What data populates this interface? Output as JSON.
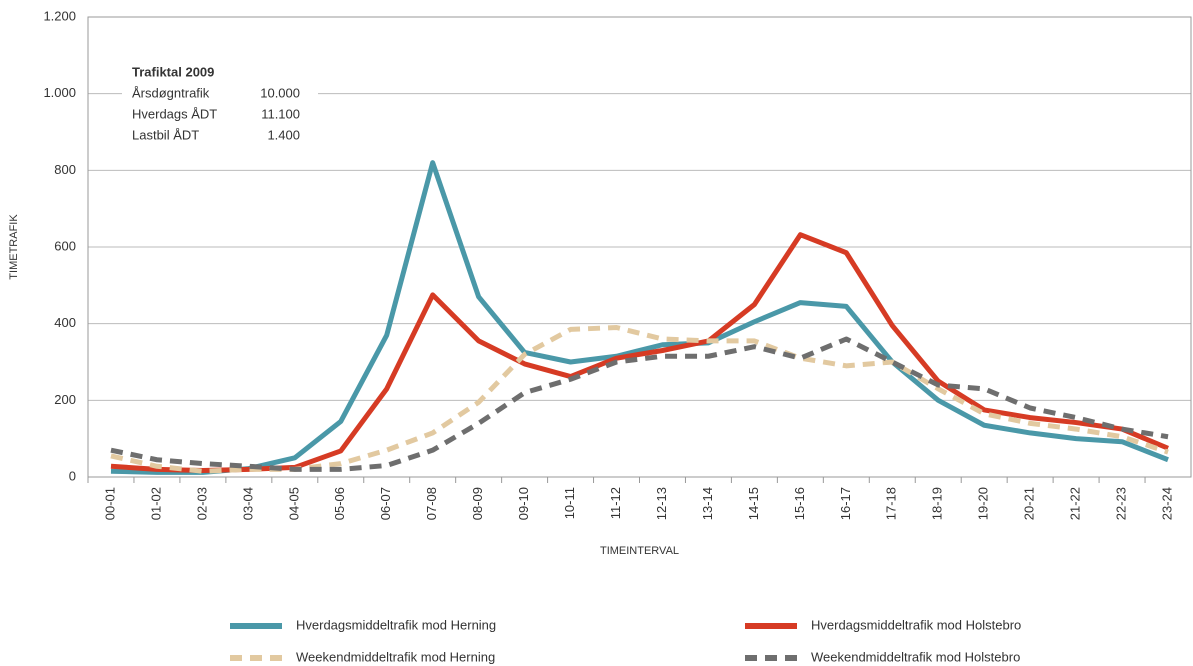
{
  "chart_data": {
    "type": "line",
    "x_label": "TIMEINTERVAL",
    "y_label": "TIMETRAFIK",
    "categories": [
      "00-01",
      "01-02",
      "02-03",
      "03-04",
      "04-05",
      "05-06",
      "06-07",
      "07-08",
      "08-09",
      "09-10",
      "10-11",
      "11-12",
      "12-13",
      "13-14",
      "14-15",
      "15-16",
      "16-17",
      "17-18",
      "18-19",
      "19-20",
      "20-21",
      "21-22",
      "22-23",
      "23-24"
    ],
    "series": [
      {
        "name": "Hverdagsmiddeltrafik mod Herning",
        "color": "#4a98a8",
        "dashed": false,
        "values": [
          15,
          12,
          12,
          22,
          50,
          145,
          370,
          820,
          470,
          325,
          300,
          315,
          345,
          350,
          405,
          455,
          445,
          300,
          200,
          135,
          115,
          100,
          92,
          45
        ]
      },
      {
        "name": "Hverdagsmiddeltrafik mod Holstebro",
        "color": "#d63b24",
        "dashed": false,
        "values": [
          28,
          20,
          17,
          20,
          25,
          68,
          230,
          475,
          355,
          295,
          262,
          310,
          330,
          355,
          450,
          632,
          585,
          395,
          250,
          175,
          155,
          142,
          125,
          75
        ]
      },
      {
        "name": "Weekendmiddeltrafik mod Herning",
        "color": "#e2c9a0",
        "dashed": true,
        "values": [
          55,
          28,
          15,
          20,
          20,
          35,
          70,
          115,
          195,
          320,
          385,
          390,
          360,
          355,
          355,
          310,
          290,
          300,
          230,
          165,
          140,
          125,
          105,
          65
        ]
      },
      {
        "name": "Weekendmiddeltrafik mod Holstebro",
        "color": "#6e6e6e",
        "dashed": true,
        "values": [
          70,
          45,
          35,
          28,
          20,
          20,
          30,
          70,
          140,
          220,
          255,
          300,
          315,
          315,
          340,
          310,
          360,
          300,
          240,
          230,
          180,
          155,
          125,
          105
        ]
      }
    ],
    "ylim": [
      0,
      1200
    ],
    "yticks": [
      0,
      200,
      400,
      600,
      800,
      {
        "value": 1000,
        "label": "1.000"
      },
      {
        "value": 1200,
        "label": "1.200"
      }
    ],
    "grid": true,
    "annotation": {
      "title": "Trafiktal 2009",
      "rows": [
        [
          "Årsdøgntrafik",
          "10.000"
        ],
        [
          "Hverdags ÅDT",
          "11.100"
        ],
        [
          "Lastbil ÅDT",
          "1.400"
        ]
      ]
    }
  }
}
